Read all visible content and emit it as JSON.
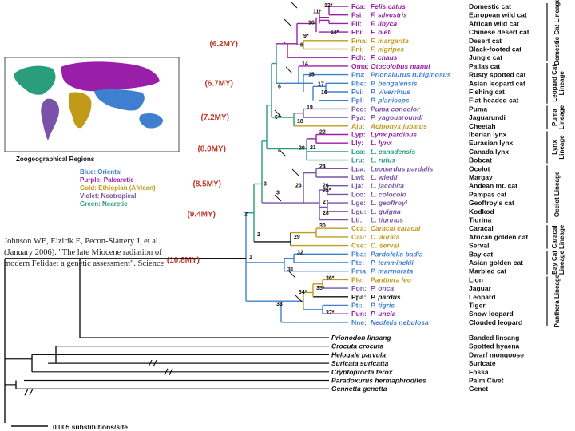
{
  "colors": {
    "oriental": "#3f7fd0",
    "palearctic": "#9a1fa8",
    "ethiopian": "#c29a1a",
    "neotropical": "#7a52a8",
    "nearctic": "#2a9d7c",
    "age": "#c0392b",
    "black": "#111111"
  },
  "citation": "Johnson WE, Eizirik E, Pecon-Slattery J, et al. (January 2006). \"The late Miocene radiation of modern Felidae: a genetic assessment\". Science",
  "map": {
    "title": "Zoogeographical Regions",
    "legend": [
      {
        "text": "Blue: Oriental",
        "color": "#3f7fd0"
      },
      {
        "text": "Purple: Palearctic",
        "color": "#9a1fa8"
      },
      {
        "text": "Gold: Ethiopian (African)",
        "color": "#c29a1a"
      },
      {
        "text": "Violet: Neotropical",
        "color": "#7a52a8"
      },
      {
        "text": "Green: Nearctic",
        "color": "#2a9d7c"
      }
    ]
  },
  "scale_label": "0.005 substitutions/site",
  "ages": [
    "(6.2MY)",
    "(6.7MY)",
    "(7.2MY)",
    "(8.0MY)",
    "(8.5MY)",
    "(9.4MY)",
    "(10.8MY)"
  ],
  "lineages": [
    "Domestic Cat Lineage",
    "Leopard Cat Lineage",
    "Puma Lineage",
    "Lynx Lineage",
    "Ocelot Lineage",
    "Caracal Lineage",
    "Bay Cat Lineage",
    "Panthera Lineage"
  ],
  "species": [
    {
      "abbr": "Fca:",
      "name": "Felis catus",
      "common": "Domestic cat",
      "color": "#9a1fa8"
    },
    {
      "abbr": "Fsi",
      "name": "F. silvestris",
      "common": "European wild cat",
      "color": "#9a1fa8"
    },
    {
      "abbr": "Fli:",
      "name": "F. libyca",
      "common": "African wild cat",
      "color": "#9a1fa8"
    },
    {
      "abbr": "Fbi:",
      "name": "F. bieti",
      "common": "Chinese desert cat",
      "color": "#9a1fa8"
    },
    {
      "abbr": "Fma:",
      "name": "F. margarita",
      "common": "Desert cat",
      "color": "#c29a1a"
    },
    {
      "abbr": "Fni:",
      "name": "F. nigripes",
      "common": "Black-footed cat",
      "color": "#c29a1a"
    },
    {
      "abbr": "Fch:",
      "name": "F. chaus",
      "common": "Jungle cat",
      "color": "#9a1fa8"
    },
    {
      "abbr": "Oma:",
      "name": "Otocolobus manul",
      "common": "Pallas cat",
      "color": "#9a1fa8"
    },
    {
      "abbr": "Pru:",
      "name": "Prionailurus rubiginosus",
      "common": "Rusty spotted cat",
      "color": "#3f7fd0"
    },
    {
      "abbr": "Pbe:",
      "name": "P. bengalensis",
      "common": "Asian leopard cat",
      "color": "#3f7fd0"
    },
    {
      "abbr": "Pvi:",
      "name": "P. viverrinus",
      "common": "Fishing cat",
      "color": "#3f7fd0"
    },
    {
      "abbr": "Ppl:",
      "name": "P. planiceps",
      "common": "Flat-headed cat",
      "color": "#3f7fd0"
    },
    {
      "abbr": "Pco:",
      "name": "Puma concolor",
      "common": "Puma",
      "color": "#7a52a8"
    },
    {
      "abbr": "Pya:",
      "name": "P. yagouaroundi",
      "common": "Jaguarundi",
      "color": "#7a52a8"
    },
    {
      "abbr": "Aju:",
      "name": "Acinonyx jubatus",
      "common": "Cheetah",
      "color": "#c29a1a"
    },
    {
      "abbr": "Lyp:",
      "name": "Lynx pardinus",
      "common": "Iberian lynx",
      "color": "#9a1fa8"
    },
    {
      "abbr": "Lly:",
      "name": "L. lynx",
      "common": "Eurasian lynx",
      "color": "#9a1fa8"
    },
    {
      "abbr": "Lca:",
      "name": "L. canadensis",
      "common": "Canada lynx",
      "color": "#2a9d7c"
    },
    {
      "abbr": "Lru:",
      "name": "L. rufus",
      "common": "Bobcat",
      "color": "#2a9d7c"
    },
    {
      "abbr": "Lpa:",
      "name": "Leopardus pardalis",
      "common": "Ocelot",
      "color": "#7a52a8"
    },
    {
      "abbr": "Lwi:",
      "name": "L. wiedii",
      "common": "Margay",
      "color": "#7a52a8"
    },
    {
      "abbr": "Lja:",
      "name": "L. jacobita",
      "common": "Andean mt. cat",
      "color": "#7a52a8"
    },
    {
      "abbr": "Lco:",
      "name": "L. colocolo",
      "common": "Pampas cat",
      "color": "#7a52a8"
    },
    {
      "abbr": "Lge:",
      "name": "L. geoffroyi",
      "common": "Geoffroy's cat",
      "color": "#7a52a8"
    },
    {
      "abbr": "Lgu:",
      "name": "L. guigna",
      "common": "Kodkod",
      "color": "#7a52a8"
    },
    {
      "abbr": "Lti:",
      "name": "L. tigrinus",
      "common": "Tigrina",
      "color": "#7a52a8"
    },
    {
      "abbr": "Cca:",
      "name": "Caracal caracal",
      "common": "Caracal",
      "color": "#c29a1a"
    },
    {
      "abbr": "Cau:",
      "name": "C. aurata",
      "common": "African golden cat",
      "color": "#c29a1a"
    },
    {
      "abbr": "Cse:",
      "name": "C. serval",
      "common": "Serval",
      "color": "#c29a1a"
    },
    {
      "abbr": "Pba:",
      "name": "Pardofelis badia",
      "common": "Bay cat",
      "color": "#3f7fd0"
    },
    {
      "abbr": "Pte:",
      "name": "P. temminckii",
      "common": "Asian golden cat",
      "color": "#3f7fd0"
    },
    {
      "abbr": "Pma:",
      "name": "P. marmorata",
      "common": "Marbled cat",
      "color": "#3f7fd0"
    },
    {
      "abbr": "Ple:",
      "name": "Panthera leo",
      "common": "Lion",
      "color": "#c29a1a"
    },
    {
      "abbr": "Pon:",
      "name": "P. onca",
      "common": "Jaguar",
      "color": "#7a52a8"
    },
    {
      "abbr": "Ppa:",
      "name": "P. pardus",
      "common": "Leopard",
      "color": "#111111"
    },
    {
      "abbr": "Pti:",
      "name": "P. tigris",
      "common": "Tiger",
      "color": "#3f7fd0"
    },
    {
      "abbr": "Pun:",
      "name": "P. uncia",
      "common": "Snow leopard",
      "color": "#9a1fa8"
    },
    {
      "abbr": "Nne:",
      "name": "Neofelis nebulosa",
      "common": "Clouded leopard",
      "color": "#3f7fd0"
    }
  ],
  "outgroups": [
    {
      "name": "Prionodon linsang",
      "common": "Banded linsang"
    },
    {
      "name": "Crocuta crocuta",
      "common": "Spotted hyaena"
    },
    {
      "name": "Helogale parvula",
      "common": "Dwarf mongoose"
    },
    {
      "name": "Suricata suricatta",
      "common": "Suricate"
    },
    {
      "name": "Cryptoprocta ferox",
      "common": "Fossa"
    },
    {
      "name": "Paradoxurus hermaphrodites",
      "common": "Palm Civet"
    },
    {
      "name": "Gennetta genetta",
      "common": "Genet"
    }
  ],
  "node_labels": [
    "12*",
    "11*",
    "10",
    "13*",
    "9*",
    "8",
    "7",
    "14",
    "15",
    "17",
    "16",
    "6",
    "19",
    "5*",
    "18",
    "22",
    "21",
    "20",
    "4",
    "24",
    "25*",
    "26",
    "28",
    "27",
    "23",
    "3",
    "30",
    "29",
    "2",
    "32",
    "31",
    "36*",
    "35*",
    "34*",
    "37*",
    "33",
    "1"
  ]
}
